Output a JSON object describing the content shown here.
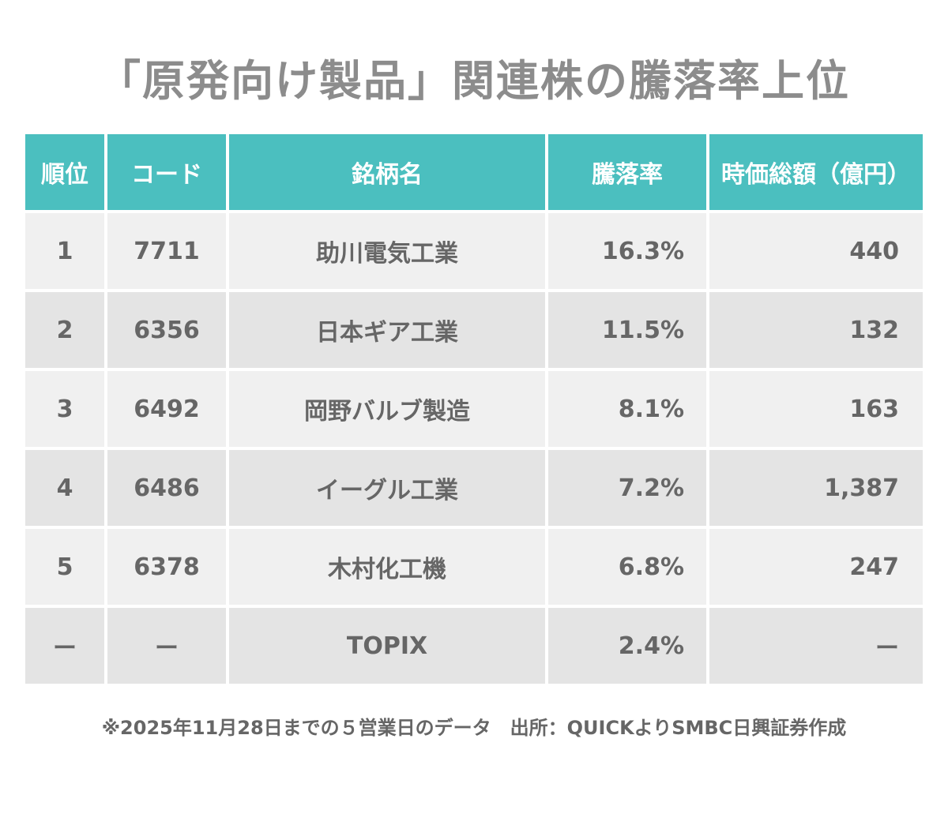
{
  "title": "「原発向け製品」関連株の騰落率上位",
  "headers": {
    "rank": "順位",
    "code": "コード",
    "name": "銘柄名",
    "rate": "騰落率",
    "cap": "時価総額（億円）"
  },
  "rows": [
    {
      "rank": "1",
      "code": "7711",
      "name": "助川電気工業",
      "rate": "16.3%",
      "cap": "440"
    },
    {
      "rank": "2",
      "code": "6356",
      "name": "日本ギア工業",
      "rate": "11.5%",
      "cap": "132"
    },
    {
      "rank": "3",
      "code": "6492",
      "name": "岡野バルブ製造",
      "rate": "8.1%",
      "cap": "163"
    },
    {
      "rank": "4",
      "code": "6486",
      "name": "イーグル工業",
      "rate": "7.2%",
      "cap": "1,387"
    },
    {
      "rank": "5",
      "code": "6378",
      "name": "木村化工機",
      "rate": "6.8%",
      "cap": "247"
    },
    {
      "rank": "ー",
      "code": "ー",
      "name": "TOPIX",
      "rate": "2.4%",
      "cap": "ー"
    }
  ],
  "note": "※2025年11月28日までの５営業日のデータ　出所：QUICKよりSMBC日興証券作成",
  "chart_data": {
    "type": "table",
    "title": "「原発向け製品」関連株の騰落率上位",
    "columns": [
      "順位",
      "コード",
      "銘柄名",
      "騰落率",
      "時価総額（億円）"
    ],
    "rows": [
      [
        "1",
        "7711",
        "助川電気工業",
        "16.3%",
        "440"
      ],
      [
        "2",
        "6356",
        "日本ギア工業",
        "11.5%",
        "132"
      ],
      [
        "3",
        "6492",
        "岡野バルブ製造",
        "8.1%",
        "163"
      ],
      [
        "4",
        "6486",
        "イーグル工業",
        "7.2%",
        "1,387"
      ],
      [
        "5",
        "6378",
        "木村化工機",
        "6.8%",
        "247"
      ],
      [
        "ー",
        "ー",
        "TOPIX",
        "2.4%",
        "ー"
      ]
    ]
  },
  "colors": {
    "header_bg": "#4bbfbf",
    "header_text": "#ffffff",
    "row_light": "#f0f0f0",
    "row_dark": "#e4e4e4",
    "title_text": "#8c8c8c",
    "body_text": "#666666"
  }
}
